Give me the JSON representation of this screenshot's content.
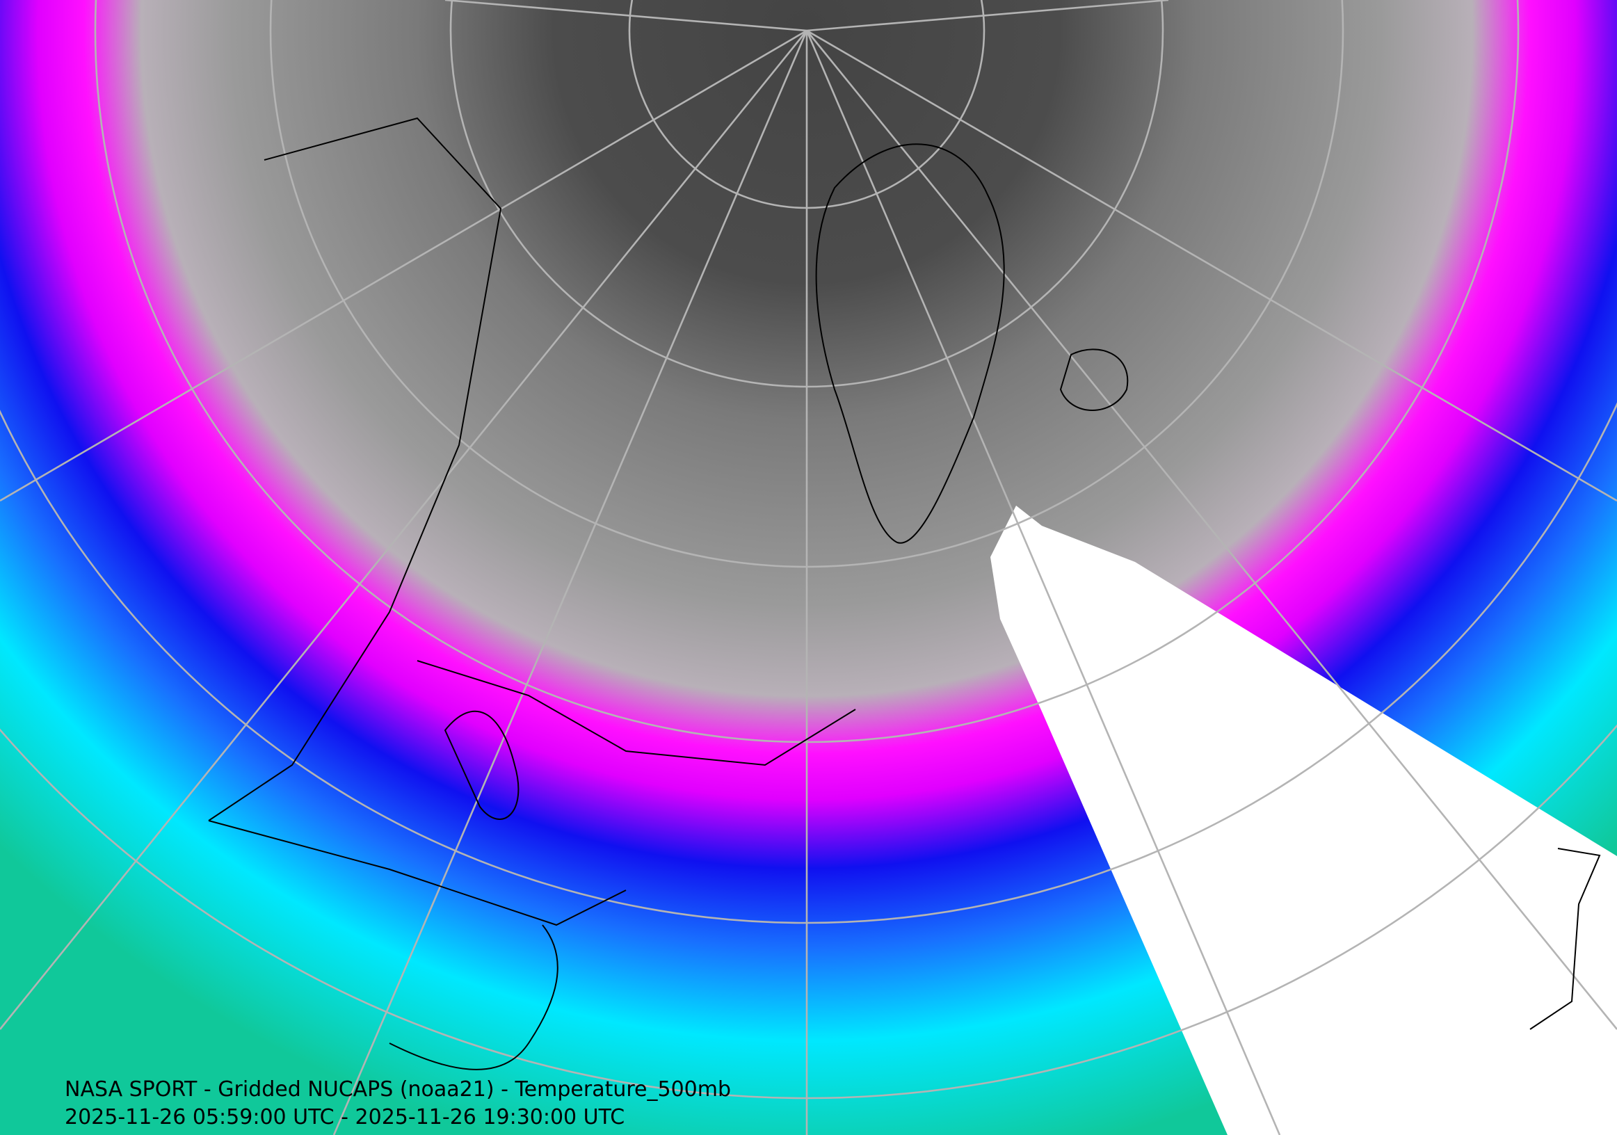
{
  "map": {
    "title": "NASA SPORT - Gridded NUCAPS (noaa21) - Temperature_500mb",
    "time_range": "2025-11-26 05:59:00 UTC - 2025-11-26 19:30:00 UTC"
  }
}
